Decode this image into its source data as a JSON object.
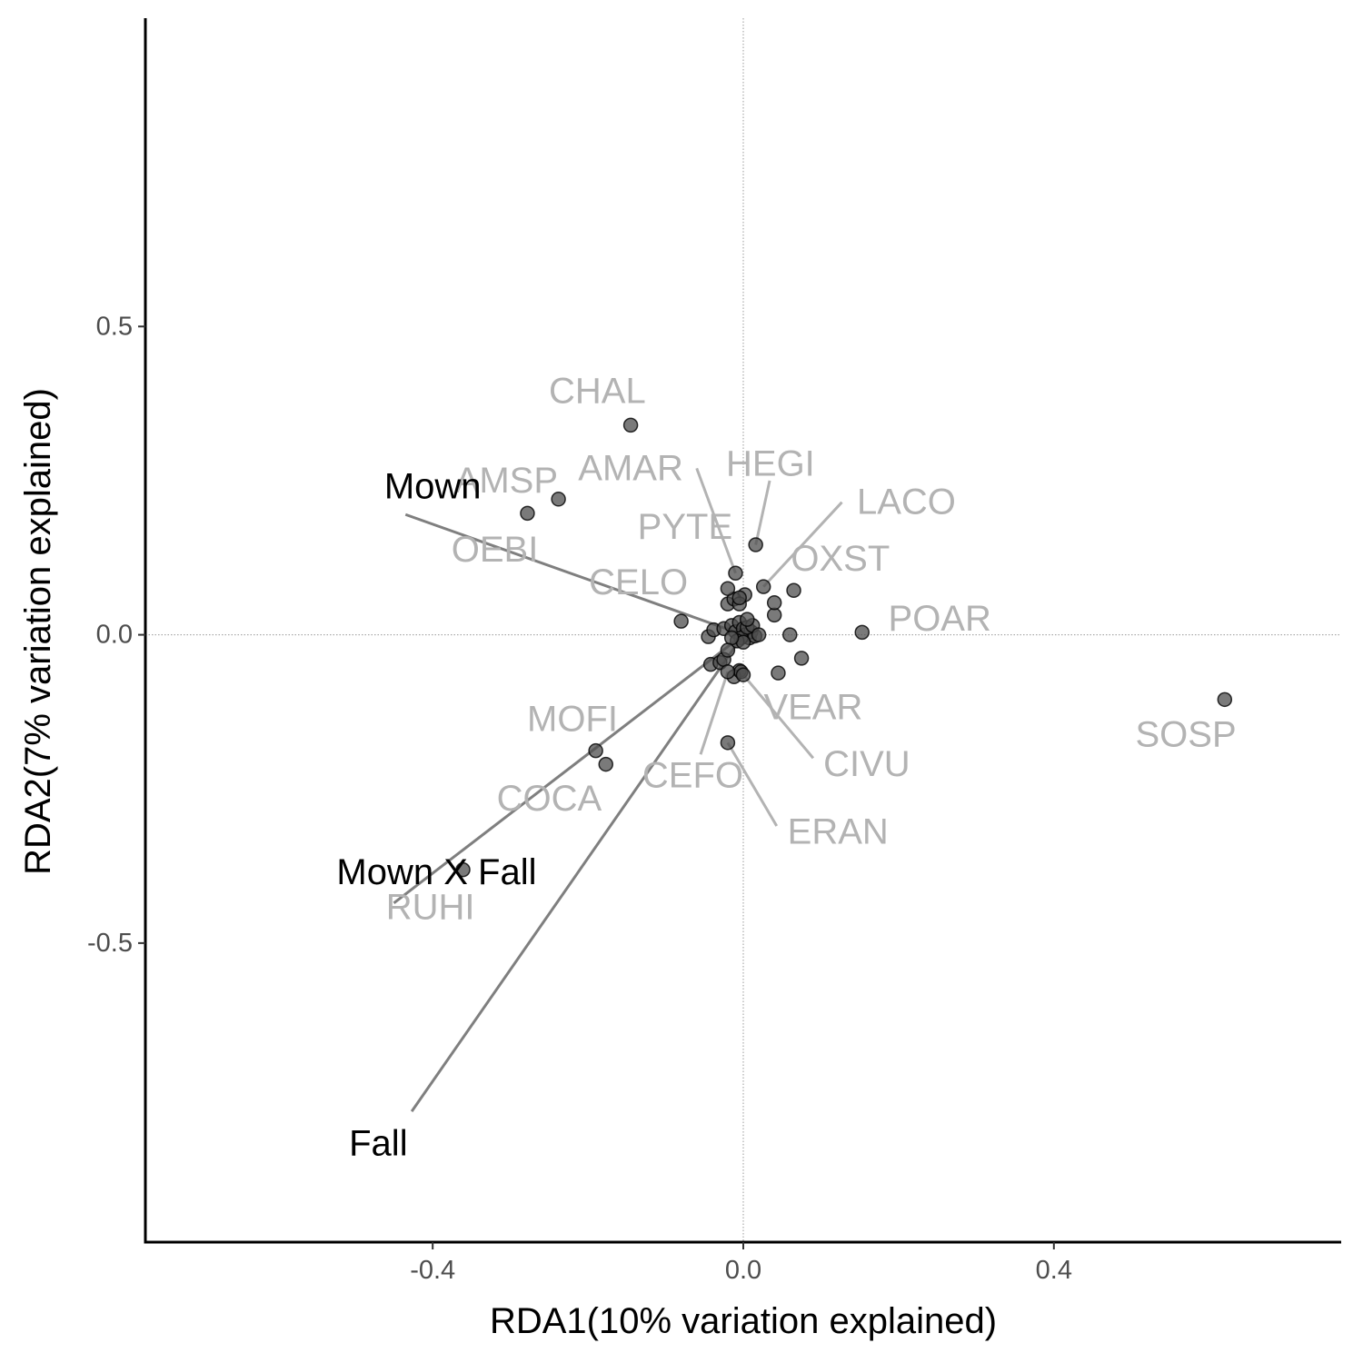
{
  "chart_data": {
    "type": "scatter",
    "title": "",
    "xlabel": "RDA1(10% variation explained)",
    "ylabel": "RDA2(7% variation explained)",
    "xlim": [
      -0.77,
      0.77
    ],
    "ylim": [
      -0.985,
      1.0
    ],
    "x_ticks": [
      -0.4,
      0.0,
      0.4
    ],
    "x_tick_labels": [
      "-0.4",
      "0.0",
      "0.4"
    ],
    "y_ticks": [
      -0.5,
      0.0,
      0.5
    ],
    "y_tick_labels": [
      "-0.5",
      "0.0",
      "0.5"
    ],
    "grid": false,
    "reference_lines": {
      "x": 0,
      "y": 0
    },
    "colors": {
      "point": "#4d4d4d",
      "species_label": "#b3b3b3",
      "vector": "#7f7f7f",
      "vector_label": "#000000"
    },
    "vectors": [
      {
        "name": "Mown",
        "x": -0.435,
        "y": 0.195,
        "label_x": -0.4,
        "label_y": 0.24
      },
      {
        "name": "Mown X Fall",
        "x": -0.45,
        "y": -0.435,
        "label_x": -0.395,
        "label_y": -0.385
      },
      {
        "name": "Fall",
        "x": -0.427,
        "y": -0.773,
        "label_x": -0.47,
        "label_y": -0.825
      }
    ],
    "species": [
      {
        "name": "CHAL",
        "x": -0.145,
        "y": 0.34,
        "label_x": -0.188,
        "label_y": 0.395
      },
      {
        "name": "AMSP",
        "x": -0.238,
        "y": 0.22,
        "label_x": -0.305,
        "label_y": 0.25
      },
      {
        "name": "OEBI",
        "x": -0.278,
        "y": 0.197,
        "label_x": -0.32,
        "label_y": 0.138
      },
      {
        "name": "AMAR",
        "x": -0.01,
        "y": 0.1,
        "label_x": -0.145,
        "label_y": 0.27,
        "leader": [
          -0.06,
          0.27
        ]
      },
      {
        "name": "HEGI",
        "x": 0.016,
        "y": 0.146,
        "label_x": 0.035,
        "label_y": 0.277,
        "leader": [
          0.034,
          0.25
        ]
      },
      {
        "name": "PYTE",
        "x": -0.005,
        "y": 0.06,
        "label_x": -0.075,
        "label_y": 0.175
      },
      {
        "name": "LACO",
        "x": 0.026,
        "y": 0.078,
        "label_x": 0.21,
        "label_y": 0.215,
        "leader": [
          0.127,
          0.215
        ]
      },
      {
        "name": "OXST",
        "x": 0.04,
        "y": 0.052,
        "label_x": 0.125,
        "label_y": 0.123
      },
      {
        "name": "CELO",
        "x": -0.02,
        "y": 0.075,
        "label_x": -0.135,
        "label_y": 0.085
      },
      {
        "name": "POAR",
        "x": 0.153,
        "y": 0.004,
        "label_x": 0.253,
        "label_y": 0.026
      },
      {
        "name": "SOSP",
        "x": 0.62,
        "y": -0.105,
        "label_x": 0.57,
        "label_y": -0.162
      },
      {
        "name": "VEAR",
        "x": -0.003,
        "y": -0.06,
        "label_x": 0.09,
        "label_y": -0.118
      },
      {
        "name": "CIVU",
        "x": 0.0,
        "y": -0.065,
        "label_x": 0.159,
        "label_y": -0.21,
        "leader": [
          0.09,
          -0.2
        ]
      },
      {
        "name": "CEFO",
        "x": -0.02,
        "y": -0.06,
        "label_x": -0.065,
        "label_y": -0.228,
        "leader": [
          -0.055,
          -0.194
        ]
      },
      {
        "name": "ERAN",
        "x": -0.02,
        "y": -0.175,
        "label_x": 0.122,
        "label_y": -0.32,
        "leader": [
          0.043,
          -0.31
        ]
      },
      {
        "name": "MOFI",
        "x": -0.19,
        "y": -0.188,
        "label_x": -0.22,
        "label_y": -0.137
      },
      {
        "name": "COCA",
        "x": -0.177,
        "y": -0.21,
        "label_x": -0.25,
        "label_y": -0.266
      },
      {
        "name": "RUHI",
        "x": -0.361,
        "y": -0.381,
        "label_x": -0.403,
        "label_y": -0.442
      }
    ],
    "other_points": [
      [
        -0.08,
        0.022
      ],
      [
        -0.045,
        -0.003
      ],
      [
        -0.038,
        0.008
      ],
      [
        -0.042,
        -0.048
      ],
      [
        -0.03,
        -0.045
      ],
      [
        -0.025,
        -0.04
      ],
      [
        -0.005,
        -0.058
      ],
      [
        -0.012,
        -0.068
      ],
      [
        0.045,
        -0.062
      ],
      [
        0.075,
        -0.038
      ],
      [
        0.06,
        0.0
      ],
      [
        0.04,
        0.032
      ],
      [
        0.065,
        0.072
      ],
      [
        0.002,
        0.065
      ],
      [
        -0.02,
        0.05
      ],
      [
        -0.012,
        0.058
      ],
      [
        -0.005,
        0.05
      ],
      [
        -0.025,
        0.01
      ],
      [
        -0.015,
        0.015
      ],
      [
        -0.01,
        0.005
      ],
      [
        -0.005,
        0.02
      ],
      [
        0.0,
        0.01
      ],
      [
        0.003,
        0.0
      ],
      [
        0.008,
        -0.005
      ],
      [
        0.01,
        0.005
      ],
      [
        0.015,
        -0.002
      ],
      [
        -0.003,
        -0.005
      ],
      [
        0.005,
        0.012
      ],
      [
        0.012,
        0.015
      ],
      [
        -0.008,
        -0.01
      ],
      [
        0.0,
        -0.012
      ],
      [
        0.005,
        0.025
      ],
      [
        -0.015,
        -0.005
      ],
      [
        0.02,
        0.0
      ],
      [
        -0.02,
        -0.025
      ]
    ]
  }
}
